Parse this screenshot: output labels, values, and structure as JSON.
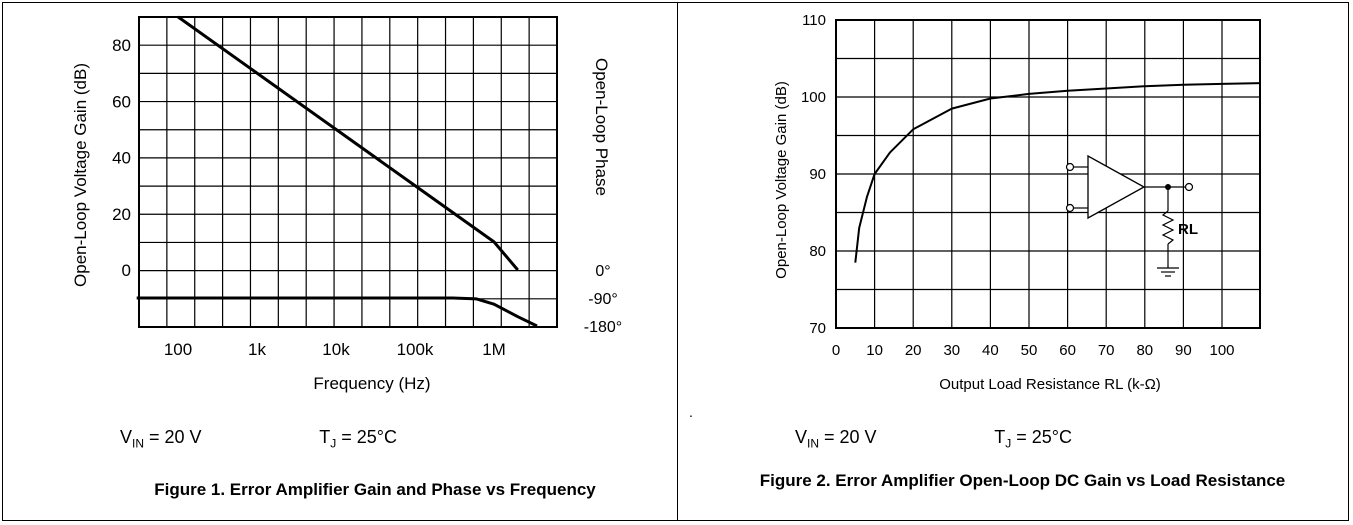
{
  "chart_data": [
    {
      "type": "line",
      "xlabel": "Frequency (Hz)",
      "ylabel": "Open-Loop Voltage Gain (dB)",
      "y2label": "Open-Loop Phase",
      "x_scale": "log",
      "x_ticks": [
        "100",
        "1k",
        "10k",
        "100k",
        "1M"
      ],
      "y_ticks": [
        "0",
        "20",
        "40",
        "60",
        "80"
      ],
      "y2_ticks": [
        "0°",
        "-90°",
        "-180°"
      ],
      "grid": true,
      "series": [
        {
          "role": "gain",
          "points": [
            [
              100,
              90
            ],
            [
              1000,
              70
            ],
            [
              10000,
              50
            ],
            [
              100000,
              30
            ],
            [
              1000000,
              10
            ],
            [
              2000000,
              0
            ]
          ]
        },
        {
          "role": "phase",
          "points": [
            [
              30,
              -90
            ],
            [
              300000,
              -90
            ],
            [
              600000,
              -93
            ],
            [
              1000000,
              -110
            ],
            [
              2000000,
              -150
            ],
            [
              3500000,
              -180
            ]
          ]
        }
      ],
      "conditions": {
        "vin_label": "V",
        "vin_sub": "IN",
        "vin_value": " = 20 V",
        "tj_label": "T",
        "tj_sub": "J",
        "tj_value": " = 25°C"
      },
      "caption": "Figure 1. Error Amplifier Gain and Phase vs Frequency"
    },
    {
      "type": "line",
      "xlabel": "Output Load Resistance RL (k-Ω)",
      "ylabel": "Open-Loop Voltage Gain (dB)",
      "xlim": [
        0,
        110
      ],
      "ylim": [
        70,
        110
      ],
      "x_ticks": [
        "0",
        "10",
        "20",
        "30",
        "40",
        "50",
        "60",
        "70",
        "80",
        "90",
        "100"
      ],
      "y_ticks": [
        "70",
        "80",
        "90",
        "100",
        "110"
      ],
      "grid": true,
      "series": [
        {
          "role": "gain",
          "points": [
            [
              5,
              78.5
            ],
            [
              6,
              83
            ],
            [
              8,
              87
            ],
            [
              10,
              90
            ],
            [
              14,
              92.8
            ],
            [
              20,
              95.8
            ],
            [
              30,
              98.5
            ],
            [
              40,
              99.8
            ],
            [
              50,
              100.4
            ],
            [
              60,
              100.8
            ],
            [
              70,
              101.1
            ],
            [
              80,
              101.4
            ],
            [
              90,
              101.6
            ],
            [
              100,
              101.7
            ],
            [
              110,
              101.8
            ]
          ]
        }
      ],
      "inset_label": "RL",
      "conditions": {
        "vin_label": "V",
        "vin_sub": "IN",
        "vin_value": " = 20 V",
        "tj_label": "T",
        "tj_sub": "J",
        "tj_value": " = 25°C"
      },
      "caption": "Figure 2. Error Amplifier Open-Loop DC Gain vs Load Resistance"
    }
  ],
  "separator_mark": "."
}
